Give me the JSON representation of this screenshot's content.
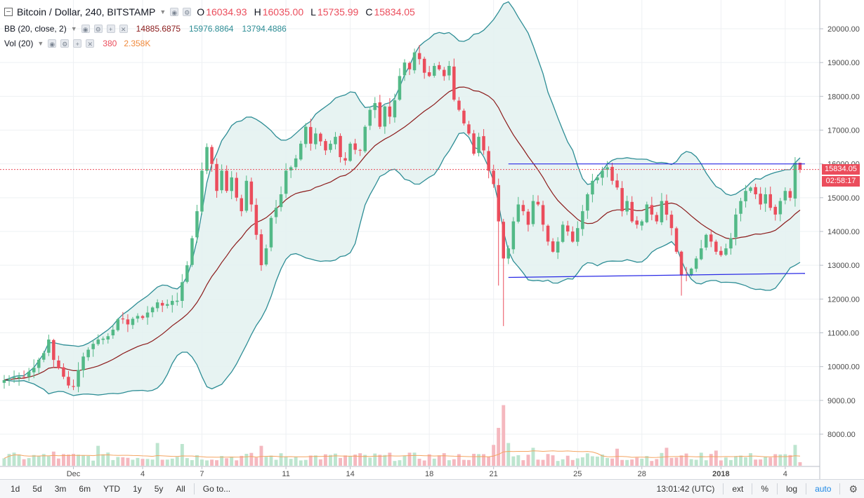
{
  "legend": {
    "main_title": "Bitcoin / Dollar, 240, BITSTAMP",
    "open_label": "O",
    "open": "16034.93",
    "high_label": "H",
    "high": "16035.00",
    "low_label": "L",
    "low": "15735.99",
    "close_label": "C",
    "close": "15834.05",
    "bb_title": "BB (20, close, 2)",
    "bb_basis": "14885.6875",
    "bb_upper": "15976.8864",
    "bb_lower": "13794.4886",
    "vol_title": "Vol (20)",
    "vol_value": "380",
    "vol_ma": "2.358K"
  },
  "colors": {
    "up": "#53b987",
    "down": "#eb4d5c",
    "up_vol": "#bde5cf",
    "down_vol": "#f5b8bf",
    "bb_band": "#2d8d95",
    "bb_basis": "#8b1a1a",
    "bb_fill": "#e3f1f0",
    "trendline": "#2a2ae6",
    "vol_ma": "#f4a460",
    "price_tag": "#eb4d5c"
  },
  "price_axis": {
    "ticks": [
      "20000.00",
      "19000.00",
      "18000.00",
      "17000.00",
      "16000.00",
      "15000.00",
      "14000.00",
      "13000.00",
      "12000.00",
      "11000.00",
      "10000.00",
      "9000.00",
      "8000.00"
    ],
    "tick_values": [
      20000,
      19000,
      18000,
      17000,
      16000,
      15000,
      14000,
      13000,
      12000,
      11000,
      10000,
      9000,
      8000
    ],
    "range": [
      7200,
      20700
    ],
    "last_price": "15834.05",
    "last_price_value": 15834.05,
    "countdown": "02:58:17"
  },
  "time_axis": {
    "labels": [
      "Dec",
      "4",
      "7",
      "11",
      "14",
      "18",
      "21",
      "25",
      "28",
      "2018",
      "4"
    ],
    "label_bars": [
      14,
      28,
      40,
      57,
      70,
      86,
      99,
      116,
      129,
      145,
      158
    ]
  },
  "chart_data": {
    "type": "candlestick",
    "title": "Bitcoin / Dollar, 240, BITSTAMP",
    "interval": "240",
    "x_labels": [
      "Dec",
      "4",
      "7",
      "11",
      "14",
      "18",
      "21",
      "25",
      "28",
      "2018",
      "4"
    ],
    "anchors": [
      [
        0,
        9600
      ],
      [
        3,
        9700
      ],
      [
        5,
        9850
      ],
      [
        8,
        10400
      ],
      [
        9,
        10800
      ],
      [
        10,
        10200
      ],
      [
        12,
        9700
      ],
      [
        14,
        9400
      ],
      [
        15,
        9900
      ],
      [
        17,
        10500
      ],
      [
        19,
        10800
      ],
      [
        21,
        10900
      ],
      [
        23,
        11400
      ],
      [
        25,
        11250
      ],
      [
        27,
        11500
      ],
      [
        29,
        11600
      ],
      [
        31,
        11900
      ],
      [
        33,
        11850
      ],
      [
        35,
        11950
      ],
      [
        36,
        12500
      ],
      [
        37,
        13000
      ],
      [
        38,
        13800
      ],
      [
        39,
        14600
      ],
      [
        40,
        15800
      ],
      [
        41,
        16500
      ],
      [
        42,
        16000
      ],
      [
        43,
        15200
      ],
      [
        44,
        15800
      ],
      [
        45,
        15200
      ],
      [
        46,
        15600
      ],
      [
        47,
        15000
      ],
      [
        48,
        14600
      ],
      [
        49,
        15500
      ],
      [
        50,
        14800
      ],
      [
        51,
        13900
      ],
      [
        52,
        13000
      ],
      [
        53,
        13500
      ],
      [
        54,
        14400
      ],
      [
        55,
        14700
      ],
      [
        56,
        15100
      ],
      [
        57,
        15800
      ],
      [
        58,
        15900
      ],
      [
        60,
        16600
      ],
      [
        61,
        17100
      ],
      [
        62,
        16600
      ],
      [
        63,
        16900
      ],
      [
        65,
        16400
      ],
      [
        67,
        16800
      ],
      [
        68,
        16200
      ],
      [
        69,
        16100
      ],
      [
        70,
        16600
      ],
      [
        72,
        16400
      ],
      [
        73,
        17100
      ],
      [
        74,
        17600
      ],
      [
        75,
        17800
      ],
      [
        76,
        17100
      ],
      [
        77,
        17700
      ],
      [
        78,
        17400
      ],
      [
        80,
        18600
      ],
      [
        81,
        19000
      ],
      [
        82,
        18800
      ],
      [
        83,
        19300
      ],
      [
        84,
        19100
      ],
      [
        85,
        18700
      ],
      [
        86,
        18600
      ],
      [
        87,
        18900
      ],
      [
        88,
        18800
      ],
      [
        89,
        18600
      ],
      [
        90,
        18900
      ],
      [
        91,
        17900
      ],
      [
        92,
        17600
      ],
      [
        93,
        17200
      ],
      [
        94,
        16900
      ],
      [
        95,
        16300
      ],
      [
        96,
        16800
      ],
      [
        97,
        16400
      ],
      [
        98,
        15800
      ],
      [
        99,
        15400
      ],
      [
        100,
        14300
      ],
      [
        101,
        13200
      ],
      [
        102,
        13500
      ],
      [
        103,
        14300
      ],
      [
        104,
        14800
      ],
      [
        105,
        14600
      ],
      [
        106,
        14200
      ],
      [
        107,
        14900
      ],
      [
        108,
        14800
      ],
      [
        109,
        14200
      ],
      [
        110,
        13700
      ],
      [
        111,
        13400
      ],
      [
        112,
        13700
      ],
      [
        113,
        14200
      ],
      [
        114,
        14000
      ],
      [
        115,
        13700
      ],
      [
        116,
        14100
      ],
      [
        117,
        14600
      ],
      [
        118,
        15100
      ],
      [
        119,
        15500
      ],
      [
        120,
        15600
      ],
      [
        121,
        15800
      ],
      [
        122,
        15900
      ],
      [
        123,
        15500
      ],
      [
        124,
        15300
      ],
      [
        125,
        14600
      ],
      [
        126,
        14900
      ],
      [
        127,
        14300
      ],
      [
        128,
        14200
      ],
      [
        129,
        14300
      ],
      [
        130,
        14800
      ],
      [
        131,
        14500
      ],
      [
        132,
        14300
      ],
      [
        133,
        14900
      ],
      [
        134,
        14500
      ],
      [
        135,
        14100
      ],
      [
        136,
        13400
      ],
      [
        137,
        12700
      ],
      [
        138,
        12700
      ],
      [
        139,
        12900
      ],
      [
        140,
        13200
      ],
      [
        141,
        13500
      ],
      [
        142,
        13900
      ],
      [
        143,
        13700
      ],
      [
        144,
        13400
      ],
      [
        145,
        13300
      ],
      [
        146,
        13500
      ],
      [
        147,
        13800
      ],
      [
        148,
        14500
      ],
      [
        149,
        14900
      ],
      [
        150,
        15200
      ],
      [
        151,
        15300
      ],
      [
        152,
        15100
      ],
      [
        153,
        14800
      ],
      [
        154,
        15100
      ],
      [
        155,
        14700
      ],
      [
        156,
        14500
      ],
      [
        157,
        14900
      ],
      [
        158,
        15200
      ],
      [
        159,
        15000
      ],
      [
        160,
        16034.93
      ],
      [
        161,
        15834.05
      ]
    ],
    "last_bar": {
      "open": 16034.93,
      "high": 16035.0,
      "low": 15735.99,
      "close": 15834.05
    },
    "bollinger": {
      "period": 20,
      "source": "close",
      "stddev": 2,
      "basis": 14885.6875,
      "upper": 15976.8864,
      "lower": 13794.4886
    },
    "volume": {
      "ma_period": 20,
      "last": 380,
      "ma": "2.358K",
      "spikes": [
        [
          10,
          1500
        ],
        [
          19,
          2100
        ],
        [
          31,
          2400
        ],
        [
          36,
          2300
        ],
        [
          52,
          2100
        ],
        [
          99,
          2200
        ],
        [
          100,
          4000
        ],
        [
          101,
          6400
        ],
        [
          102,
          2400
        ],
        [
          107,
          1900
        ],
        [
          124,
          1800
        ],
        [
          134,
          1900
        ],
        [
          144,
          1600
        ],
        [
          160,
          2200
        ]
      ]
    },
    "trendlines": [
      {
        "role": "resistance",
        "from": [
          102,
          16000
        ],
        "to": [
          162,
          16000
        ]
      },
      {
        "role": "support",
        "from": [
          102,
          12640
        ],
        "to": [
          162,
          12760
        ]
      }
    ],
    "ylim": [
      7200,
      20700
    ]
  },
  "toolbar": {
    "ranges": [
      "1d",
      "5d",
      "3m",
      "6m",
      "YTD",
      "1y",
      "5y",
      "All"
    ],
    "goto": "Go to...",
    "time": "13:01:42 (UTC)",
    "ext": "ext",
    "percent": "%",
    "log": "log",
    "auto": "auto"
  }
}
